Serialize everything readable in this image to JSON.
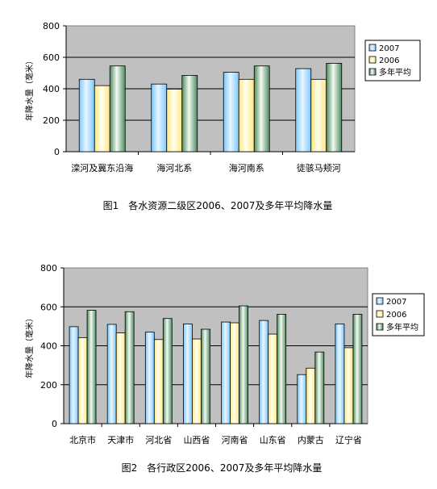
{
  "chart_data": [
    {
      "type": "bar",
      "categories": [
        "滦河及冀东沿海",
        "海河北系",
        "海河南系",
        "徒骇马颊河"
      ],
      "series": [
        {
          "name": "2007",
          "values": [
            460,
            430,
            505,
            528
          ],
          "color": "#bfe6ff"
        },
        {
          "name": "2006",
          "values": [
            420,
            398,
            460,
            460
          ],
          "color": "#ffffcc"
        },
        {
          "name": "多年平均",
          "values": [
            545,
            485,
            545,
            562
          ],
          "color": "#d4ead4"
        }
      ],
      "ylabel": "年降水量（毫米）",
      "ylim": [
        0,
        800
      ],
      "yticks": [
        0,
        200,
        400,
        600,
        800
      ],
      "grid": true,
      "plot_bg": "#c0c0c0",
      "caption": "图1　各水资源二级区2006、2007及多年平均降水量",
      "legend": "right"
    },
    {
      "type": "bar",
      "categories": [
        "北京市",
        "天津市",
        "河北省",
        "山西省",
        "河南省",
        "山东省",
        "内蒙古",
        "辽宁省"
      ],
      "series": [
        {
          "name": "2007",
          "values": [
            498,
            510,
            470,
            512,
            522,
            530,
            252,
            512
          ],
          "color": "#bfe6ff"
        },
        {
          "name": "2006",
          "values": [
            442,
            466,
            432,
            435,
            518,
            460,
            285,
            390
          ],
          "color": "#ffffcc"
        },
        {
          "name": "多年平均",
          "values": [
            582,
            575,
            540,
            485,
            605,
            562,
            368,
            562
          ],
          "color": "#d4ead4"
        }
      ],
      "ylabel": "年降水量（毫米）",
      "ylim": [
        0,
        800
      ],
      "yticks": [
        0,
        200,
        400,
        600,
        800
      ],
      "grid": true,
      "plot_bg": "#c0c0c0",
      "caption": "图2　各行政区2006、2007及多年平均降水量",
      "legend": "right"
    }
  ]
}
